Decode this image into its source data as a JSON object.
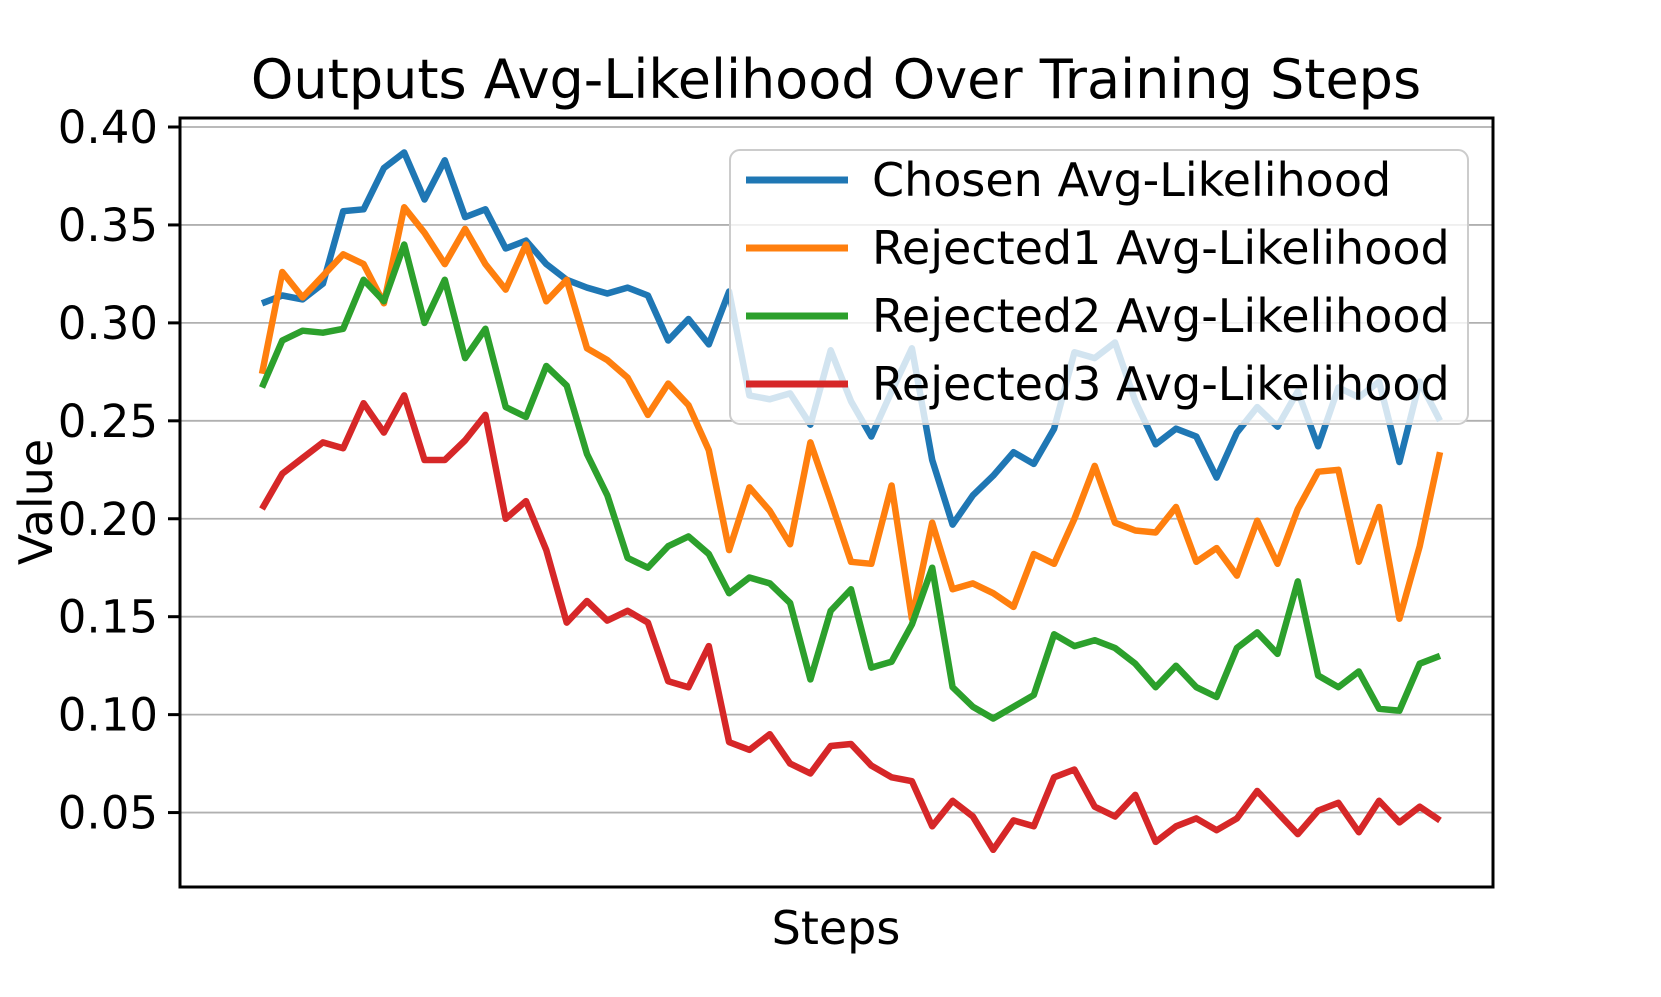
{
  "chart_data": {
    "type": "line",
    "title": "Outputs Avg-Likelihood Over Training Steps",
    "xlabel": "Steps",
    "ylabel": "Value",
    "ylim": [
      0.012,
      0.4046
    ],
    "grid": "horizontal-only",
    "grid_color": "#b0b0b0",
    "background_color": "#ffffff",
    "legend_position": "upper-right",
    "legend_face_alpha": 0.8,
    "legend_edge_color": "#cccccc",
    "n_points": 59,
    "yticks": {
      "values": [
        0.4,
        0.35,
        0.3,
        0.25,
        0.2,
        0.15,
        0.1,
        0.05
      ],
      "labels": [
        "0.40",
        "0.35",
        "0.30",
        "0.25",
        "0.20",
        "0.15",
        "0.10",
        "0.05"
      ]
    },
    "xticks": {
      "values": [],
      "labels": []
    },
    "series": [
      {
        "name": "chosen",
        "label": "Chosen Avg-Likelihood",
        "color": "#1f77b4",
        "values": [
          0.31,
          0.314,
          0.312,
          0.32,
          0.357,
          0.358,
          0.379,
          0.387,
          0.363,
          0.383,
          0.354,
          0.358,
          0.338,
          0.342,
          0.33,
          0.322,
          0.318,
          0.315,
          0.318,
          0.314,
          0.291,
          0.302,
          0.289,
          0.316,
          0.263,
          0.261,
          0.264,
          0.248,
          0.286,
          0.26,
          0.242,
          0.265,
          0.287,
          0.23,
          0.197,
          0.212,
          0.222,
          0.234,
          0.228,
          0.246,
          0.285,
          0.282,
          0.29,
          0.26,
          0.238,
          0.246,
          0.242,
          0.221,
          0.244,
          0.257,
          0.247,
          0.265,
          0.237,
          0.267,
          0.262,
          0.27,
          0.229,
          0.27,
          0.25
        ]
      },
      {
        "name": "rejected1",
        "label": "Rejected1 Avg-Likelihood",
        "color": "#ff7f0e",
        "values": [
          0.274,
          0.326,
          0.313,
          0.324,
          0.335,
          0.33,
          0.31,
          0.359,
          0.346,
          0.33,
          0.348,
          0.33,
          0.317,
          0.34,
          0.311,
          0.322,
          0.287,
          0.281,
          0.272,
          0.253,
          0.269,
          0.258,
          0.235,
          0.184,
          0.216,
          0.204,
          0.187,
          0.239,
          0.209,
          0.178,
          0.177,
          0.217,
          0.149,
          0.198,
          0.164,
          0.167,
          0.162,
          0.155,
          0.182,
          0.177,
          0.2,
          0.227,
          0.198,
          0.194,
          0.193,
          0.206,
          0.178,
          0.185,
          0.171,
          0.199,
          0.177,
          0.205,
          0.224,
          0.225,
          0.178,
          0.206,
          0.149,
          0.186,
          0.234
        ]
      },
      {
        "name": "rejected2",
        "label": "Rejected2 Avg-Likelihood",
        "color": "#2ca02c",
        "values": [
          0.267,
          0.291,
          0.296,
          0.295,
          0.297,
          0.322,
          0.311,
          0.34,
          0.3,
          0.322,
          0.282,
          0.297,
          0.257,
          0.252,
          0.278,
          0.268,
          0.233,
          0.212,
          0.18,
          0.175,
          0.186,
          0.191,
          0.182,
          0.162,
          0.17,
          0.167,
          0.157,
          0.118,
          0.153,
          0.164,
          0.124,
          0.127,
          0.146,
          0.175,
          0.114,
          0.104,
          0.098,
          0.104,
          0.11,
          0.141,
          0.135,
          0.138,
          0.134,
          0.126,
          0.114,
          0.125,
          0.114,
          0.109,
          0.134,
          0.142,
          0.131,
          0.168,
          0.12,
          0.114,
          0.122,
          0.103,
          0.102,
          0.126,
          0.13
        ]
      },
      {
        "name": "rejected3",
        "label": "Rejected3 Avg-Likelihood",
        "color": "#d62728",
        "values": [
          0.205,
          0.223,
          0.231,
          0.239,
          0.236,
          0.259,
          0.244,
          0.263,
          0.23,
          0.23,
          0.24,
          0.253,
          0.2,
          0.209,
          0.184,
          0.147,
          0.158,
          0.148,
          0.153,
          0.147,
          0.117,
          0.114,
          0.135,
          0.086,
          0.082,
          0.09,
          0.075,
          0.07,
          0.084,
          0.085,
          0.074,
          0.068,
          0.066,
          0.043,
          0.056,
          0.048,
          0.031,
          0.046,
          0.043,
          0.068,
          0.072,
          0.053,
          0.048,
          0.059,
          0.035,
          0.043,
          0.047,
          0.041,
          0.047,
          0.061,
          0.05,
          0.039,
          0.051,
          0.055,
          0.04,
          0.056,
          0.045,
          0.053,
          0.046
        ]
      }
    ]
  }
}
